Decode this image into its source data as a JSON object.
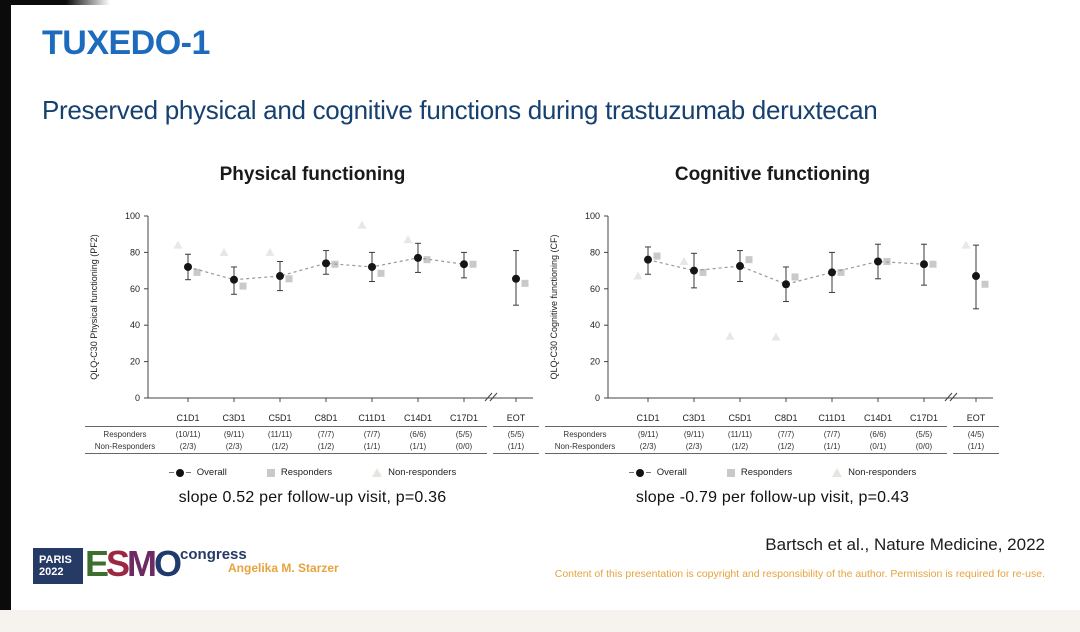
{
  "slide": {
    "title": "TUXEDO-1",
    "subtitle": "Preserved physical and cognitive functions during trastuzumab deruxtecan"
  },
  "colors": {
    "title": "#1d6bbd",
    "subtitle": "#16416f",
    "accent_orange": "#e7a33d",
    "overall": "#151515",
    "responders": "#c9c9c9",
    "non_responders": "#e8e8e3",
    "axis": "#444444",
    "dashed_line": "#999999",
    "logo_navy": "#263a66"
  },
  "legend": {
    "items": [
      {
        "name": "overall",
        "label": "Overall"
      },
      {
        "name": "responders",
        "label": "Responders"
      },
      {
        "name": "non-responders",
        "label": "Non-responders"
      }
    ]
  },
  "chart_data": [
    {
      "type": "scatter",
      "title": "Physical functioning",
      "ylabel": "QLQ-C30 Physical functioning (PF2)",
      "ylim": [
        0,
        100
      ],
      "yticks": [
        0,
        20,
        40,
        60,
        80,
        100
      ],
      "x_axis_break_before": "EOT",
      "grid": false,
      "legend_position": "bottom",
      "categories": [
        "C1D1",
        "C3D1",
        "C5D1",
        "C8D1",
        "C11D1",
        "C14D1",
        "C17D1",
        "EOT"
      ],
      "series": [
        {
          "name": "Overall",
          "marker": "circle",
          "values": [
            72,
            65,
            67,
            74,
            72,
            77,
            73.5,
            65.5
          ],
          "err_low": [
            65,
            57,
            59,
            68,
            64,
            69,
            66,
            51
          ],
          "err_high": [
            79,
            72,
            75,
            81,
            80,
            85,
            80,
            81
          ]
        },
        {
          "name": "Responders",
          "marker": "square",
          "values": [
            69,
            61.5,
            65.5,
            73.5,
            68.5,
            76,
            73.5,
            63
          ]
        },
        {
          "name": "Non-responders",
          "marker": "triangle",
          "values": [
            84,
            80,
            80,
            null,
            95,
            87,
            null,
            null
          ]
        }
      ],
      "table": {
        "rows": [
          {
            "label": "Responders",
            "values": [
              "(10/11)",
              "(9/11)",
              "(11/11)",
              "(7/7)",
              "(7/7)",
              "(6/6)",
              "(5/5)",
              "(5/5)"
            ]
          },
          {
            "label": "Non-Responders",
            "values": [
              "(2/3)",
              "(2/3)",
              "(1/2)",
              "(1/2)",
              "(1/1)",
              "(1/1)",
              "(0/0)",
              "(1/1)"
            ]
          }
        ]
      },
      "slope_note": "slope 0.52 per follow-up visit, p=0.36"
    },
    {
      "type": "scatter",
      "title": "Cognitive functioning",
      "ylabel": "QLQ-C30 Cognitive functioning (CF)",
      "ylim": [
        0,
        100
      ],
      "yticks": [
        0,
        20,
        40,
        60,
        80,
        100
      ],
      "x_axis_break_before": "EOT",
      "grid": false,
      "legend_position": "bottom",
      "categories": [
        "C1D1",
        "C3D1",
        "C5D1",
        "C8D1",
        "C11D1",
        "C14D1",
        "C17D1",
        "EOT"
      ],
      "series": [
        {
          "name": "Overall",
          "marker": "circle",
          "values": [
            76,
            70,
            72.5,
            62.5,
            69,
            75,
            73.5,
            67
          ],
          "err_low": [
            68,
            60.5,
            64,
            53,
            58,
            65.5,
            62,
            49
          ],
          "err_high": [
            83,
            79.5,
            81,
            72,
            80,
            84.5,
            84.5,
            84
          ]
        },
        {
          "name": "Responders",
          "marker": "square",
          "values": [
            78,
            69,
            76,
            66.5,
            69,
            75,
            73.5,
            62.5
          ]
        },
        {
          "name": "Non-responders",
          "marker": "triangle",
          "values": [
            67,
            75,
            34,
            33.5,
            null,
            null,
            null,
            84
          ]
        }
      ],
      "table": {
        "rows": [
          {
            "label": "Responders",
            "values": [
              "(9/11)",
              "(9/11)",
              "(11/11)",
              "(7/7)",
              "(7/7)",
              "(6/6)",
              "(5/5)",
              "(4/5)"
            ]
          },
          {
            "label": "Non-Responders",
            "values": [
              "(2/3)",
              "(2/3)",
              "(1/2)",
              "(1/2)",
              "(1/1)",
              "(0/1)",
              "(0/0)",
              "(1/1)"
            ]
          }
        ]
      },
      "slope_note": "slope -0.79 per follow-up visit, p=0.43"
    }
  ],
  "footer": {
    "logo": {
      "paris": [
        "PARIS",
        "2022"
      ],
      "esmo_letters": [
        {
          "ch": "E",
          "color": "#3c6e2d"
        },
        {
          "ch": "S",
          "color": "#9b2742"
        },
        {
          "ch": "M",
          "color": "#6e2a63"
        },
        {
          "ch": "O",
          "color": "#203a6d"
        }
      ],
      "congress": "congress"
    },
    "author": "Angelika M. Starzer",
    "reference": "Bartsch et al., Nature Medicine, 2022",
    "copyright": "Content of this presentation is copyright and responsibility of the author. Permission is required for re-use."
  }
}
